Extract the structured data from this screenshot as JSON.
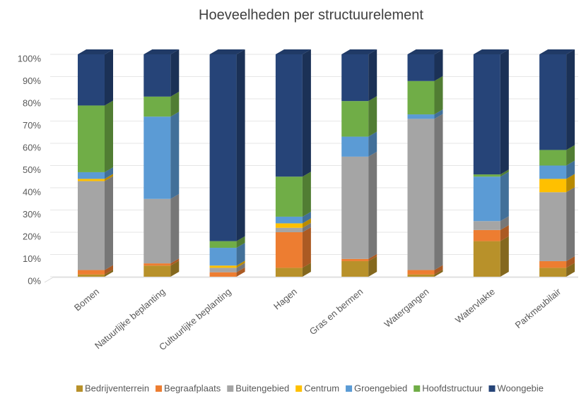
{
  "chart_data": {
    "type": "stacked_bar_3d",
    "title": "Hoeveelheden per structuurelement",
    "categories": [
      "Bomen",
      "Natuurlijke beplanting",
      "Cultuurlijke beplanting",
      "Hagen",
      "Gras en bermen",
      "Watergangen",
      "Watervlakte",
      "Parkmeubilair"
    ],
    "series": [
      {
        "name": "Bedrijventerrein",
        "color": "#b8912a",
        "values": [
          1,
          5,
          0,
          4,
          7,
          1,
          16,
          4
        ]
      },
      {
        "name": "Begraafplaats",
        "color": "#ed7d31",
        "values": [
          2,
          1,
          2,
          16,
          1,
          2,
          5,
          3
        ]
      },
      {
        "name": "Buitengebied",
        "color": "#a5a5a5",
        "values": [
          40,
          29,
          2,
          2,
          46,
          68,
          4,
          31
        ]
      },
      {
        "name": "Centrum",
        "color": "#ffc000",
        "values": [
          1,
          0,
          1,
          2,
          0,
          0,
          0,
          6
        ]
      },
      {
        "name": "Groengebied",
        "color": "#5b9bd5",
        "values": [
          3,
          37,
          8,
          3,
          9,
          2,
          20,
          6
        ]
      },
      {
        "name": "Hoofdstructuur",
        "color": "#70ad47",
        "values": [
          30,
          9,
          3,
          18,
          16,
          15,
          1,
          7
        ]
      },
      {
        "name": "Woongebie",
        "color": "#264478",
        "values": [
          23,
          19,
          84,
          55,
          21,
          12,
          54,
          43
        ]
      }
    ],
    "ylim": [
      0,
      100
    ],
    "yticks": [
      {
        "value": 0,
        "label": "0%"
      },
      {
        "value": 10,
        "label": "10%"
      },
      {
        "value": 20,
        "label": "20%"
      },
      {
        "value": 30,
        "label": "30%"
      },
      {
        "value": 40,
        "label": "40%"
      },
      {
        "value": 50,
        "label": "50%"
      },
      {
        "value": 60,
        "label": "60%"
      },
      {
        "value": 70,
        "label": "70%"
      },
      {
        "value": 80,
        "label": "80%"
      },
      {
        "value": 90,
        "label": "90%"
      },
      {
        "value": 100,
        "label": "100%"
      }
    ],
    "grid": true,
    "legend": "bottom"
  }
}
